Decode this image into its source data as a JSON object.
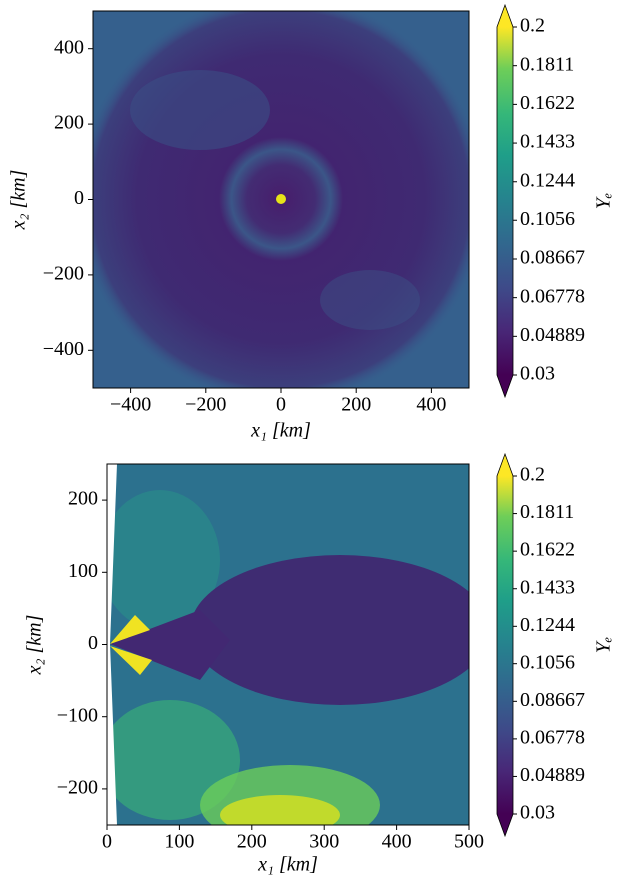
{
  "chart_data": [
    {
      "type": "heatmap",
      "xlabel": "x₁ [km]",
      "ylabel": "x₂ [km]",
      "xlim": [
        -500,
        500
      ],
      "ylim": [
        -500,
        500
      ],
      "xticks": [
        {
          "value": -400,
          "label": "−400"
        },
        {
          "value": -200,
          "label": "−200"
        },
        0,
        200,
        400
      ],
      "yticks": [
        {
          "value": -400,
          "label": "−400"
        },
        {
          "value": -200,
          "label": "−200"
        },
        0,
        200,
        400
      ],
      "colorbar": {
        "label": "Yₑ",
        "lim": [
          0.03,
          0.2
        ],
        "extend": "both",
        "colormap": "viridis",
        "ticks": [
          0.03,
          0.04889,
          0.06778,
          0.08667,
          0.1056,
          0.1244,
          0.1433,
          0.1622,
          0.1811,
          0.2
        ]
      }
    },
    {
      "type": "heatmap",
      "xlabel": "x₁ [km]",
      "ylabel": "x₂ [km]",
      "xlim": [
        0,
        500
      ],
      "ylim": [
        -250,
        250
      ],
      "xticks": [
        0,
        100,
        200,
        300,
        400,
        500
      ],
      "yticks": [
        {
          "value": -200,
          "label": "−200"
        },
        {
          "value": -100,
          "label": "−100"
        },
        0,
        100,
        200
      ],
      "colorbar": {
        "label": "Yₑ",
        "lim": [
          0.03,
          0.2
        ],
        "extend": "both",
        "colormap": "viridis",
        "ticks": [
          0.03,
          0.04889,
          0.06778,
          0.08667,
          0.1056,
          0.1244,
          0.1433,
          0.1622,
          0.1811,
          0.2
        ]
      }
    }
  ]
}
